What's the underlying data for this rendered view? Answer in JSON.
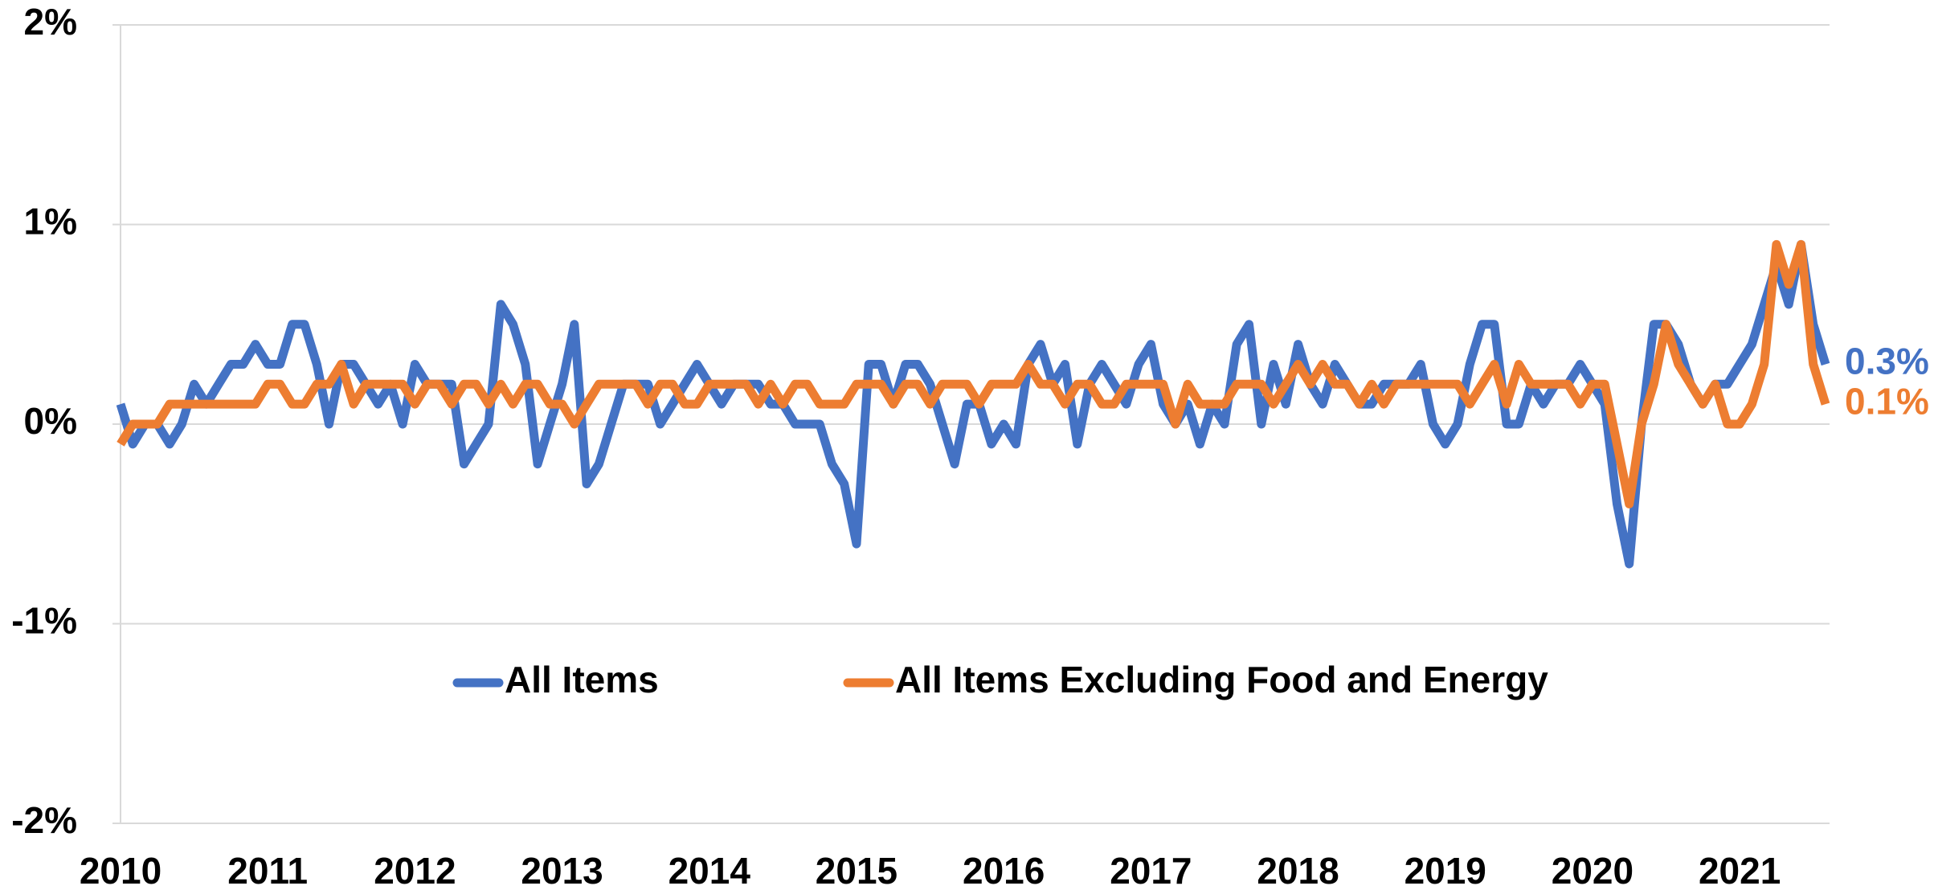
{
  "chart_data": {
    "type": "line",
    "categories": [
      "2010",
      null,
      null,
      null,
      null,
      null,
      null,
      null,
      null,
      null,
      null,
      null,
      "2011",
      null,
      null,
      null,
      null,
      null,
      null,
      null,
      null,
      null,
      null,
      null,
      "2012",
      null,
      null,
      null,
      null,
      null,
      null,
      null,
      null,
      null,
      null,
      null,
      "2013",
      null,
      null,
      null,
      null,
      null,
      null,
      null,
      null,
      null,
      null,
      null,
      "2014",
      null,
      null,
      null,
      null,
      null,
      null,
      null,
      null,
      null,
      null,
      null,
      "2015",
      null,
      null,
      null,
      null,
      null,
      null,
      null,
      null,
      null,
      null,
      null,
      "2016",
      null,
      null,
      null,
      null,
      null,
      null,
      null,
      null,
      null,
      null,
      null,
      "2017",
      null,
      null,
      null,
      null,
      null,
      null,
      null,
      null,
      null,
      null,
      null,
      "2018",
      null,
      null,
      null,
      null,
      null,
      null,
      null,
      null,
      null,
      null,
      null,
      "2019",
      null,
      null,
      null,
      null,
      null,
      null,
      null,
      null,
      null,
      null,
      null,
      "2020",
      null,
      null,
      null,
      null,
      null,
      null,
      null,
      null,
      null,
      null,
      null,
      "2021",
      null,
      null,
      null,
      null,
      null,
      null,
      null
    ],
    "series": [
      {
        "name": "All Items",
        "color": "#4472c4",
        "end_label": "0.3%",
        "values": [
          0.1,
          -0.1,
          0.0,
          0.0,
          -0.1,
          0.0,
          0.2,
          0.1,
          0.2,
          0.3,
          0.3,
          0.4,
          0.3,
          0.3,
          0.5,
          0.5,
          0.3,
          0.0,
          0.3,
          0.3,
          0.2,
          0.1,
          0.2,
          0.0,
          0.3,
          0.2,
          0.2,
          0.2,
          -0.2,
          -0.1,
          0.0,
          0.6,
          0.5,
          0.3,
          -0.2,
          0.0,
          0.2,
          0.5,
          -0.3,
          -0.2,
          0.0,
          0.2,
          0.2,
          0.2,
          0.0,
          0.1,
          0.2,
          0.3,
          0.2,
          0.1,
          0.2,
          0.2,
          0.2,
          0.1,
          0.1,
          0.0,
          0.0,
          0.0,
          -0.2,
          -0.3,
          -0.6,
          0.3,
          0.3,
          0.1,
          0.3,
          0.3,
          0.2,
          0.0,
          -0.2,
          0.1,
          0.1,
          -0.1,
          0.0,
          -0.1,
          0.3,
          0.4,
          0.2,
          0.3,
          -0.1,
          0.2,
          0.3,
          0.2,
          0.1,
          0.3,
          0.4,
          0.1,
          0.0,
          0.1,
          -0.1,
          0.1,
          0.0,
          0.4,
          0.5,
          0.0,
          0.3,
          0.1,
          0.4,
          0.2,
          0.1,
          0.3,
          0.2,
          0.1,
          0.1,
          0.2,
          0.2,
          0.2,
          0.3,
          0.0,
          -0.1,
          0.0,
          0.3,
          0.5,
          0.5,
          0.0,
          0.0,
          0.2,
          0.1,
          0.2,
          0.2,
          0.3,
          0.2,
          0.1,
          -0.4,
          -0.7,
          0.0,
          0.5,
          0.5,
          0.4,
          0.2,
          0.1,
          0.2,
          0.2,
          0.3,
          0.4,
          0.6,
          0.8,
          0.6,
          0.9,
          0.5,
          0.3
        ]
      },
      {
        "name": "All Items Excluding Food and Energy",
        "color": "#ed7d31",
        "end_label": "0.1%",
        "values": [
          -0.1,
          0.0,
          0.0,
          0.0,
          0.1,
          0.1,
          0.1,
          0.1,
          0.1,
          0.1,
          0.1,
          0.1,
          0.2,
          0.2,
          0.1,
          0.1,
          0.2,
          0.2,
          0.3,
          0.1,
          0.2,
          0.2,
          0.2,
          0.2,
          0.1,
          0.2,
          0.2,
          0.1,
          0.2,
          0.2,
          0.1,
          0.2,
          0.1,
          0.2,
          0.2,
          0.1,
          0.1,
          0.0,
          0.1,
          0.2,
          0.2,
          0.2,
          0.2,
          0.1,
          0.2,
          0.2,
          0.1,
          0.1,
          0.2,
          0.2,
          0.2,
          0.2,
          0.1,
          0.2,
          0.1,
          0.2,
          0.2,
          0.1,
          0.1,
          0.1,
          0.2,
          0.2,
          0.2,
          0.1,
          0.2,
          0.2,
          0.1,
          0.2,
          0.2,
          0.2,
          0.1,
          0.2,
          0.2,
          0.2,
          0.3,
          0.2,
          0.2,
          0.1,
          0.2,
          0.2,
          0.1,
          0.1,
          0.2,
          0.2,
          0.2,
          0.2,
          0.0,
          0.2,
          0.1,
          0.1,
          0.1,
          0.2,
          0.2,
          0.2,
          0.1,
          0.2,
          0.3,
          0.2,
          0.3,
          0.2,
          0.2,
          0.1,
          0.2,
          0.1,
          0.2,
          0.2,
          0.2,
          0.2,
          0.2,
          0.2,
          0.1,
          0.2,
          0.3,
          0.1,
          0.3,
          0.2,
          0.2,
          0.2,
          0.2,
          0.1,
          0.2,
          0.2,
          -0.1,
          -0.4,
          0.0,
          0.2,
          0.5,
          0.3,
          0.2,
          0.1,
          0.2,
          0.0,
          0.0,
          0.1,
          0.3,
          0.9,
          0.7,
          0.9,
          0.3,
          0.1
        ]
      }
    ],
    "ylim": [
      -2,
      2
    ],
    "yticks": [
      {
        "value": -2,
        "label": "-2%"
      },
      {
        "value": -1,
        "label": "-1%"
      },
      {
        "value": 0,
        "label": "0%"
      },
      {
        "value": 1,
        "label": "1%"
      },
      {
        "value": 2,
        "label": "2%"
      }
    ],
    "grid": true,
    "legend": "center"
  }
}
